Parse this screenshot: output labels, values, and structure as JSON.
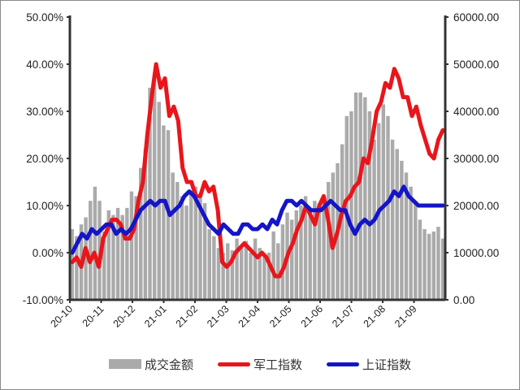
{
  "chart_data": {
    "type": "bar+line",
    "title": "",
    "xlabel": "",
    "ylabel_left": "",
    "ylabel_right": "",
    "left_axis": {
      "range": [
        -0.1,
        0.5
      ],
      "ticks": [
        "-10.00%",
        "0.00%",
        "10.00%",
        "20.00%",
        "30.00%",
        "40.00%",
        "50.00%"
      ]
    },
    "right_axis": {
      "range": [
        0,
        60000
      ],
      "ticks": [
        "0.00",
        "10000.00",
        "20000.00",
        "30000.00",
        "40000.00",
        "50000.00",
        "60000.00"
      ]
    },
    "categories": [
      "20-10",
      "20-11",
      "20-12",
      "21-01",
      "21-02",
      "21-03",
      "21-04",
      "21-05",
      "21-06",
      "21-07",
      "21-08",
      "21-09"
    ],
    "grid": false,
    "legend_position": "bottom",
    "series": [
      {
        "name": "成交金额",
        "type": "bar",
        "axis": "right",
        "color": "#aaaaaa",
        "values": [
          15000,
          13500,
          16000,
          17500,
          21000,
          24000,
          21000,
          14500,
          19000,
          18000,
          19500,
          18000,
          19500,
          23000,
          22000,
          28000,
          32000,
          45000,
          48000,
          42000,
          37000,
          36000,
          27000,
          25000,
          22000,
          20000,
          23000,
          24000,
          22000,
          20500,
          15000,
          13500,
          11000,
          10000,
          12000,
          10500,
          13000,
          11000,
          12500,
          10000,
          13000,
          11000,
          9500,
          10000,
          14500,
          12000,
          16000,
          18500,
          17000,
          19000,
          20000,
          22000,
          19000,
          21000,
          20500,
          22000,
          25000,
          27000,
          29000,
          33000,
          39000,
          40000,
          44000,
          44000,
          43000,
          40000,
          34000,
          37500,
          41500,
          39000,
          34000,
          32000,
          29500,
          27000,
          24000,
          21000,
          17000,
          15000,
          14000,
          14500,
          15500,
          13000
        ]
      },
      {
        "name": "军工指数",
        "type": "line",
        "axis": "left",
        "color": "#e8161b",
        "values": [
          -0.02,
          -0.01,
          -0.03,
          0.01,
          -0.02,
          0.0,
          -0.03,
          0.03,
          0.05,
          0.07,
          0.07,
          0.06,
          0.03,
          0.03,
          0.05,
          0.11,
          0.15,
          0.25,
          0.33,
          0.4,
          0.35,
          0.37,
          0.29,
          0.31,
          0.28,
          0.18,
          0.15,
          0.15,
          0.12,
          0.12,
          0.15,
          0.13,
          0.14,
          0.09,
          -0.02,
          -0.03,
          -0.02,
          0.0,
          0.01,
          0.02,
          0.01,
          0.0,
          -0.01,
          0.0,
          -0.01,
          -0.03,
          -0.05,
          -0.05,
          -0.03,
          0.0,
          0.02,
          0.05,
          0.07,
          0.1,
          0.08,
          0.06,
          0.1,
          0.12,
          0.07,
          0.01,
          0.04,
          0.08,
          0.11,
          0.12,
          0.14,
          0.15,
          0.2,
          0.19,
          0.24,
          0.3,
          0.32,
          0.36,
          0.35,
          0.39,
          0.37,
          0.33,
          0.33,
          0.29,
          0.31,
          0.27,
          0.24,
          0.21,
          0.2,
          0.24,
          0.26
        ]
      },
      {
        "name": "上证指数",
        "type": "line",
        "axis": "left",
        "color": "#1414c8",
        "values": [
          0.0,
          0.02,
          0.04,
          0.03,
          0.05,
          0.04,
          0.05,
          0.06,
          0.06,
          0.04,
          0.05,
          0.04,
          0.05,
          0.07,
          0.09,
          0.1,
          0.11,
          0.1,
          0.11,
          0.11,
          0.08,
          0.09,
          0.1,
          0.12,
          0.13,
          0.12,
          0.1,
          0.08,
          0.06,
          0.05,
          0.04,
          0.06,
          0.05,
          0.04,
          0.04,
          0.06,
          0.06,
          0.05,
          0.05,
          0.06,
          0.05,
          0.07,
          0.06,
          0.09,
          0.11,
          0.11,
          0.1,
          0.11,
          0.1,
          0.09,
          0.09,
          0.09,
          0.1,
          0.11,
          0.1,
          0.09,
          0.09,
          0.06,
          0.04,
          0.06,
          0.07,
          0.06,
          0.07,
          0.09,
          0.1,
          0.11,
          0.13,
          0.12,
          0.14,
          0.12,
          0.11,
          0.1,
          0.1,
          0.1,
          0.1,
          0.1,
          0.1
        ]
      }
    ]
  },
  "legend": {
    "items": [
      {
        "label": "成交金额",
        "color": "#aaaaaa"
      },
      {
        "label": "军工指数",
        "color": "#e8161b"
      },
      {
        "label": "上证指数",
        "color": "#1414c8"
      }
    ]
  }
}
